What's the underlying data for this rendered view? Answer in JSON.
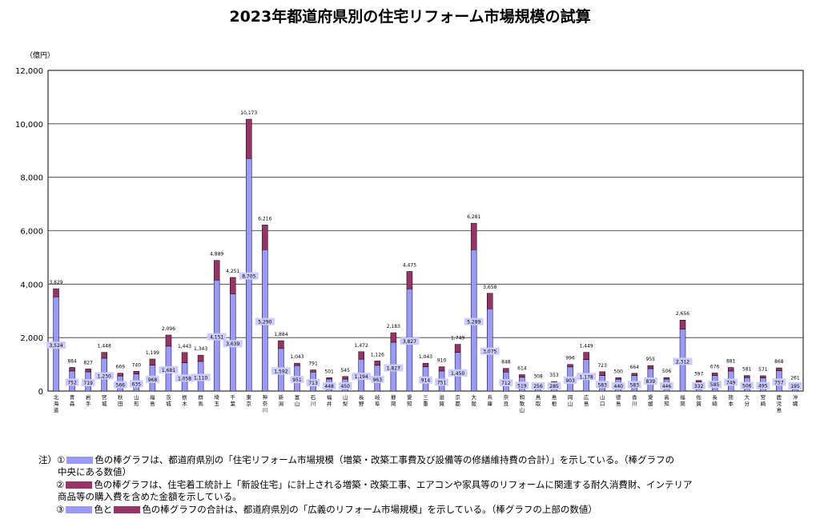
{
  "title": "2023年都道府県別の住宅リフォーム市場規模の試算",
  "chart_data": {
    "type": "bar",
    "stacked": true,
    "unit_label": "（億円）",
    "ylim": [
      0,
      12000
    ],
    "yticks": [
      "0",
      "2,000",
      "4,000",
      "6,000",
      "8,000",
      "10,000",
      "12,000"
    ],
    "grid": true,
    "categories": [
      "北海道",
      "青森",
      "岩手",
      "宮城",
      "秋田",
      "山形",
      "福島",
      "茨城",
      "栃木",
      "群馬",
      "埼玉",
      "千葉",
      "東京",
      "神奈川",
      "新潟",
      "富山",
      "石川",
      "福井",
      "山梨",
      "長野",
      "岐阜",
      "静岡",
      "愛知",
      "三重",
      "滋賀",
      "京都",
      "大阪",
      "兵庫",
      "奈良",
      "和歌山",
      "鳥取",
      "島根",
      "岡山",
      "広島",
      "山口",
      "徳島",
      "香川",
      "愛媛",
      "高知",
      "福岡",
      "佐賀",
      "長崎",
      "熊本",
      "大分",
      "宮崎",
      "鹿児島",
      "沖縄"
    ],
    "base_values": [
      3524,
      752,
      719,
      1230,
      566,
      635,
      968,
      1681,
      1058,
      1110,
      4151,
      3639,
      8705,
      5290,
      1592,
      951,
      713,
      448,
      450,
      1194,
      963,
      1827,
      3827,
      914,
      751,
      1450,
      5289,
      3075,
      712,
      519,
      256,
      285,
      903,
      1178,
      583,
      440,
      583,
      839,
      446,
      2312,
      332,
      585,
      749,
      506,
      495,
      757,
      195
    ],
    "base_labels": [
      "3,524",
      "752",
      "719",
      "1,230",
      "566",
      "635",
      "968",
      "1,681",
      "1,058",
      "1,110",
      "4,151",
      "3,639",
      "8,705",
      "5,290",
      "1,592",
      "951",
      "713",
      "448",
      "450",
      "1,194",
      "963",
      "1,827",
      "3,827",
      "914",
      "751",
      "1,450",
      "5,289",
      "3,075",
      "712",
      "519",
      "256",
      "285",
      "903",
      "1,178",
      "583",
      "440",
      "583",
      "839",
      "446",
      "2,312",
      "332",
      "585",
      "749",
      "506",
      "495",
      "757",
      "195"
    ],
    "total_values": [
      3829,
      884,
      827,
      1448,
      669,
      740,
      1199,
      2096,
      1443,
      1343,
      4889,
      4251,
      10173,
      6216,
      1884,
      1043,
      791,
      501,
      545,
      1472,
      1126,
      2183,
      4475,
      1043,
      910,
      1749,
      6281,
      3658,
      848,
      614,
      308,
      353,
      996,
      1449,
      723,
      500,
      664,
      955,
      506,
      2656,
      397,
      676,
      881,
      581,
      571,
      868,
      261
    ],
    "total_labels": [
      "3,829",
      "884",
      "827",
      "1,448",
      "669",
      "740",
      "1,199",
      "2,096",
      "1,443",
      "1,343",
      "4,889",
      "4,251",
      "10,173",
      "6,216",
      "1,884",
      "1,043",
      "791",
      "501",
      "545",
      "1,472",
      "1,126",
      "2,183",
      "4,475",
      "1,043",
      "910",
      "1,749",
      "6,281",
      "3,658",
      "848",
      "614",
      "308",
      "353",
      "996",
      "1,449",
      "723",
      "500",
      "664",
      "955",
      "506",
      "2,656",
      "397",
      "676",
      "881",
      "581",
      "571",
      "868",
      "261"
    ],
    "colors": {
      "base": "#9999ff",
      "extra": "#993366"
    }
  },
  "notes": {
    "n1_marker": "注）①",
    "n1_text_a": "色の棒グラフは、都道府県別の「住宅リフォーム市場規模（増築・改築工事費及び設備等の修繕維持費の合計）」を示している。（棒グラフの",
    "n1_text_b": "中央にある数値）",
    "n2_marker": "②",
    "n2_text_a": "色の棒グラフは、住宅着工統計上「新設住宅」に計上される増築・改築工事、エアコンや家具等のリフォームに関連する耐久消費財、インテリア",
    "n2_text_b": "商品等の購入費を含めた金額を示している。",
    "n3_marker": "③",
    "n3_text_mid": "色と",
    "n3_text_a": "色の棒グラフの合計は、都道府県別の「広義のリフォーム市場規模」を示している。（棒グラフの上部の数値）"
  }
}
